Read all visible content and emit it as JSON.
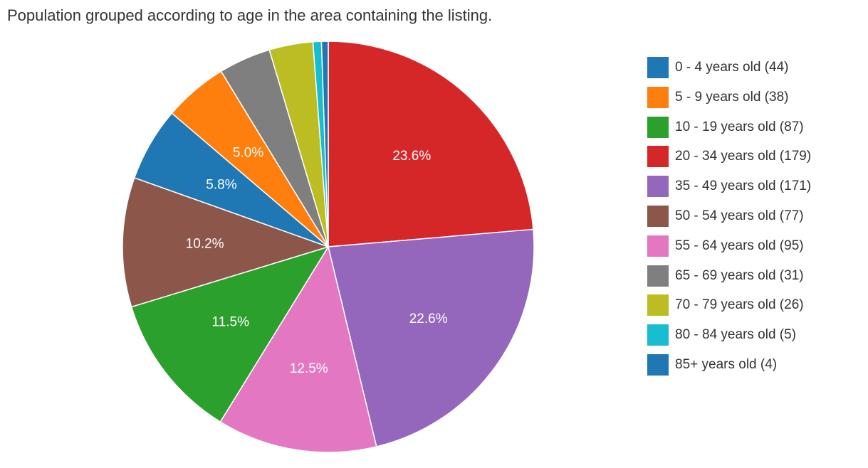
{
  "chart_data": {
    "type": "pie",
    "title": "Population grouped according to age in the area containing the listing.",
    "legend_position": "right",
    "start_angle": "top, clockwise",
    "slices": [
      {
        "category": "20 - 34 years old",
        "legend_label": "20 - 34 years old (179)",
        "value": 179,
        "percent_label": "23.6%",
        "color": "#d62728"
      },
      {
        "category": "35 - 49 years old",
        "legend_label": "35 - 49 years old (171)",
        "value": 171,
        "percent_label": "22.6%",
        "color": "#9467bd"
      },
      {
        "category": "55 - 64 years old",
        "legend_label": "55 - 64 years old (95)",
        "value": 95,
        "percent_label": "12.5%",
        "color": "#e377c2"
      },
      {
        "category": "10 - 19 years old",
        "legend_label": "10 - 19 years old (87)",
        "value": 87,
        "percent_label": "11.5%",
        "color": "#2ca02c"
      },
      {
        "category": "50 - 54 years old",
        "legend_label": "50 - 54 years old (77)",
        "value": 77,
        "percent_label": "10.2%",
        "color": "#8c564b"
      },
      {
        "category": "0 - 4 years old",
        "legend_label": "0 - 4 years old (44)",
        "value": 44,
        "percent_label": "5.8%",
        "color": "#1f77b4"
      },
      {
        "category": "5 - 9 years old",
        "legend_label": "5 - 9 years old (38)",
        "value": 38,
        "percent_label": "5.0%",
        "color": "#ff7f0e"
      },
      {
        "category": "65 - 69 years old",
        "legend_label": "65 - 69 years old (31)",
        "value": 31,
        "percent_label": "",
        "color": "#7f7f7f"
      },
      {
        "category": "70 - 79 years old",
        "legend_label": "70 - 79 years old (26)",
        "value": 26,
        "percent_label": "",
        "color": "#bcbd22"
      },
      {
        "category": "80 - 84 years old",
        "legend_label": "80 - 84 years old (5)",
        "value": 5,
        "percent_label": "",
        "color": "#17becf"
      },
      {
        "category": "85+ years old",
        "legend_label": "85+ years old (4)",
        "value": 4,
        "percent_label": "",
        "color": "#1f77b4"
      }
    ],
    "legend_order": [
      "0 - 4 years old",
      "5 - 9 years old",
      "10 - 19 years old",
      "20 - 34 years old",
      "35 - 49 years old",
      "50 - 54 years old",
      "55 - 64 years old",
      "65 - 69 years old",
      "70 - 79 years old",
      "80 - 84 years old",
      "85+ years old"
    ]
  }
}
